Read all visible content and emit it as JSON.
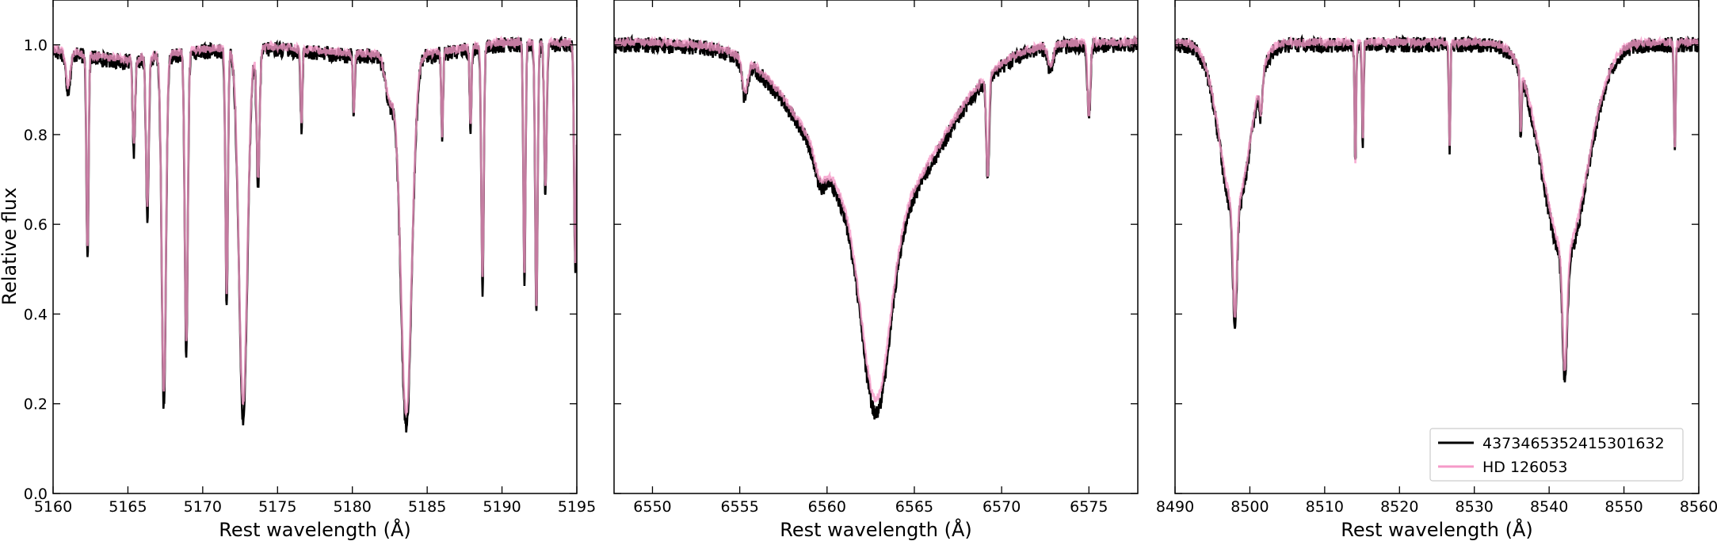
{
  "chart_data": {
    "type": "line",
    "ylabel": "Relative flux",
    "ylim": [
      0,
      1.1
    ],
    "yticks": [
      0.0,
      0.2,
      0.4,
      0.6,
      0.8,
      1.0
    ],
    "ytick_labels": [
      "0.0",
      "0.2",
      "0.4",
      "0.6",
      "0.8",
      "1.0"
    ],
    "legend": {
      "placement": "lower-right of third panel",
      "entries": [
        {
          "label": "4373465352415301632",
          "color": "#000000"
        },
        {
          "label": "HD 126053",
          "color": "#f59ac8"
        }
      ]
    },
    "colors": {
      "star": "#000000",
      "reference": "#f59ac8",
      "overlap": "#9c4a72"
    },
    "panels": [
      {
        "xlabel": "Rest wavelength (Å)",
        "xlim": [
          5160,
          5195
        ],
        "xticks": [
          5160,
          5165,
          5170,
          5175,
          5180,
          5185,
          5190,
          5195
        ],
        "xtick_labels": [
          "5160",
          "5165",
          "5170",
          "5175",
          "5180",
          "5185",
          "5190",
          "5195"
        ],
        "continuum": [
          [
            5160,
            0.985
          ],
          [
            5165,
            0.96
          ],
          [
            5170,
            0.985
          ],
          [
            5175,
            0.99
          ],
          [
            5180,
            0.975
          ],
          [
            5185,
            0.975
          ],
          [
            5190,
            1.0
          ],
          [
            5195,
            1.0
          ]
        ],
        "lines": [
          {
            "x": 5161.0,
            "depth": 0.08,
            "width": 0.15
          },
          {
            "x": 5162.3,
            "depth": 0.45,
            "width": 0.07
          },
          {
            "x": 5165.4,
            "depth": 0.2,
            "width": 0.08
          },
          {
            "x": 5166.3,
            "depth": 0.35,
            "width": 0.09
          },
          {
            "x": 5167.4,
            "depth": 0.78,
            "width": 0.14
          },
          {
            "x": 5168.9,
            "depth": 0.67,
            "width": 0.1
          },
          {
            "x": 5171.6,
            "depth": 0.57,
            "width": 0.08
          },
          {
            "x": 5172.7,
            "depth": 0.82,
            "width": 0.28
          },
          {
            "x": 5173.7,
            "depth": 0.3,
            "width": 0.1
          },
          {
            "x": 5176.6,
            "depth": 0.17,
            "width": 0.06
          },
          {
            "x": 5180.1,
            "depth": 0.13,
            "width": 0.06
          },
          {
            "x": 5182.5,
            "depth": 0.1,
            "width": 0.3
          },
          {
            "x": 5183.6,
            "depth": 0.83,
            "width": 0.37
          },
          {
            "x": 5186.0,
            "depth": 0.19,
            "width": 0.06
          },
          {
            "x": 5187.9,
            "depth": 0.18,
            "width": 0.06
          },
          {
            "x": 5188.7,
            "depth": 0.54,
            "width": 0.08
          },
          {
            "x": 5191.5,
            "depth": 0.53,
            "width": 0.07
          },
          {
            "x": 5192.3,
            "depth": 0.6,
            "width": 0.08
          },
          {
            "x": 5192.9,
            "depth": 0.33,
            "width": 0.08
          },
          {
            "x": 5194.9,
            "depth": 0.5,
            "width": 0.08
          }
        ]
      },
      {
        "xlabel": "Rest wavelength (Å)",
        "xlim": [
          6547.8,
          6577.8
        ],
        "xticks": [
          6550,
          6555,
          6560,
          6565,
          6570,
          6575
        ],
        "xtick_labels": [
          "6550",
          "6555",
          "6560",
          "6565",
          "6570",
          "6575"
        ],
        "continuum": [
          [
            6547.8,
            1.0
          ],
          [
            6577.8,
            1.0
          ]
        ],
        "lines": [
          {
            "x": 6562.8,
            "depth": 0.4,
            "width": 3.5
          },
          {
            "x": 6562.8,
            "depth": 0.42,
            "width": 0.8
          },
          {
            "x": 6555.3,
            "depth": 0.08,
            "width": 0.15
          },
          {
            "x": 6559.6,
            "depth": 0.05,
            "width": 0.3
          },
          {
            "x": 6569.2,
            "depth": 0.23,
            "width": 0.08
          },
          {
            "x": 6575.0,
            "depth": 0.17,
            "width": 0.08
          },
          {
            "x": 6572.8,
            "depth": 0.05,
            "width": 0.15
          }
        ]
      },
      {
        "xlabel": "Rest wavelength (Å)",
        "xlim": [
          8490,
          8560
        ],
        "xticks": [
          8490,
          8500,
          8510,
          8520,
          8530,
          8540,
          8550,
          8560
        ],
        "xtick_labels": [
          "8490",
          "8500",
          "8510",
          "8520",
          "8530",
          "8540",
          "8550",
          "8560"
        ],
        "continuum": [
          [
            8490,
            1.0
          ],
          [
            8560,
            1.0
          ]
        ],
        "lines": [
          {
            "x": 8498.0,
            "depth": 0.38,
            "width": 2.0
          },
          {
            "x": 8498.0,
            "depth": 0.25,
            "width": 0.25
          },
          {
            "x": 8542.1,
            "depth": 0.48,
            "width": 3.0
          },
          {
            "x": 8542.1,
            "depth": 0.27,
            "width": 0.3
          },
          {
            "x": 8501.5,
            "depth": 0.08,
            "width": 0.2
          },
          {
            "x": 8514.1,
            "depth": 0.27,
            "width": 0.1
          },
          {
            "x": 8515.1,
            "depth": 0.22,
            "width": 0.1
          },
          {
            "x": 8526.7,
            "depth": 0.23,
            "width": 0.1
          },
          {
            "x": 8536.2,
            "depth": 0.14,
            "width": 0.1
          },
          {
            "x": 8556.8,
            "depth": 0.25,
            "width": 0.1
          }
        ]
      }
    ]
  }
}
